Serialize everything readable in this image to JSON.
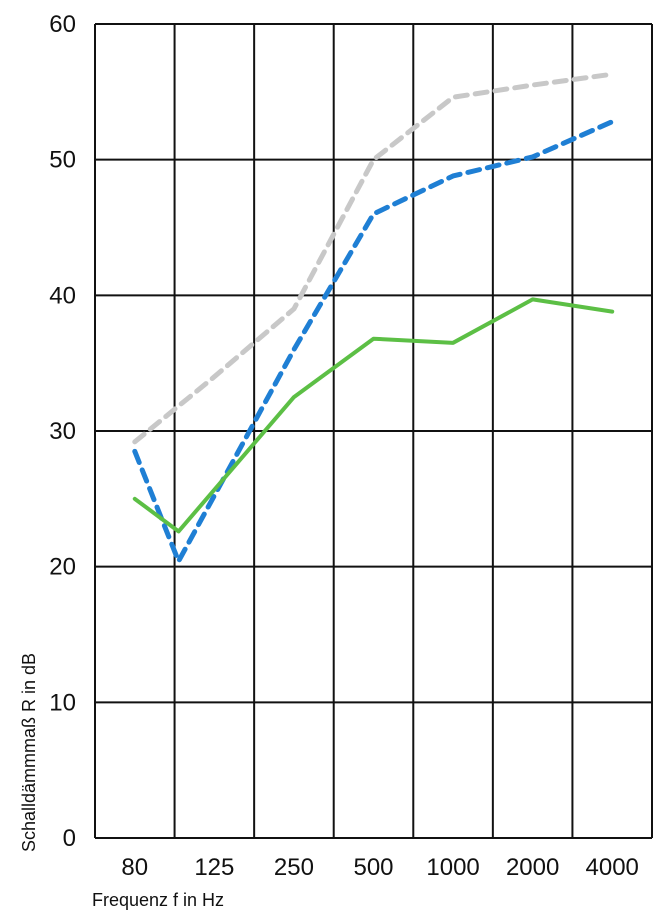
{
  "chart_data": {
    "type": "line",
    "title": "",
    "xlabel": "Frequenz f  in Hz",
    "ylabel": "Schalldämmmaß R in dB",
    "categories": [
      "80",
      "125",
      "250",
      "500",
      "1000",
      "2000",
      "4000"
    ],
    "ylim": [
      0,
      60
    ],
    "yticks": [
      "0",
      "10",
      "20",
      "30",
      "40",
      "50",
      "60"
    ],
    "grid": true,
    "series": [
      {
        "color": "#c8c8c8",
        "style": "dashed",
        "points": [
          {
            "x": 0.0,
            "y": 29.2
          },
          {
            "x": 1.0,
            "y": 34.0
          },
          {
            "x": 2.0,
            "y": 39.0
          },
          {
            "x": 3.0,
            "y": 50.0
          },
          {
            "x": 4.0,
            "y": 54.6
          },
          {
            "x": 5.0,
            "y": 55.5
          },
          {
            "x": 6.0,
            "y": 56.3
          }
        ]
      },
      {
        "color": "#1f7fd4",
        "style": "dashed",
        "points": [
          {
            "x": 0.0,
            "y": 28.5
          },
          {
            "x": 0.55,
            "y": 20.4
          },
          {
            "x": 2.0,
            "y": 36.0
          },
          {
            "x": 3.0,
            "y": 46.0
          },
          {
            "x": 4.0,
            "y": 48.8
          },
          {
            "x": 5.0,
            "y": 50.2
          },
          {
            "x": 6.0,
            "y": 52.8
          }
        ]
      },
      {
        "color": "#5cbf45",
        "style": "solid",
        "points": [
          {
            "x": 0.0,
            "y": 25.0
          },
          {
            "x": 0.55,
            "y": 22.6
          },
          {
            "x": 2.0,
            "y": 32.5
          },
          {
            "x": 3.0,
            "y": 36.8
          },
          {
            "x": 4.0,
            "y": 36.5
          },
          {
            "x": 5.0,
            "y": 39.7
          },
          {
            "x": 6.0,
            "y": 38.8
          }
        ]
      }
    ]
  }
}
